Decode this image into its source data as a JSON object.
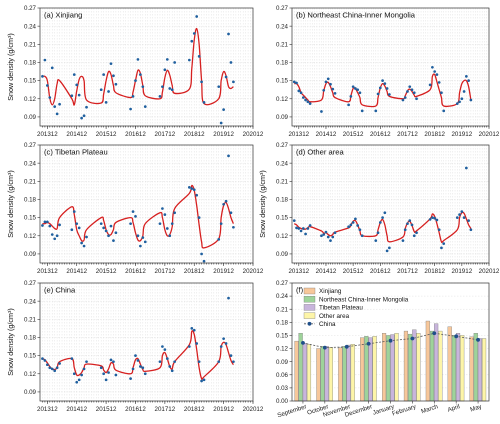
{
  "colors": {
    "points": "#1f5f9e",
    "curve": "#d62020",
    "xinjiang": "#f7c79a",
    "northeast": "#9ed39a",
    "tibetan": "#c8b5dc",
    "other": "#fdf5a8",
    "china_line": "#5a5a5a",
    "china_marker": "#1f4f8a"
  },
  "panels": [
    {
      "title": "(a) Xinjiang",
      "ylabel": "Snow density (g/cm³)",
      "yticks": [
        "0.09",
        "0.12",
        "0.15",
        "0.18",
        "0.21",
        "0.24",
        "0.27"
      ],
      "xticks": [
        "201312",
        "201412",
        "201512",
        "201612",
        "201712",
        "201812",
        "201912",
        "202012"
      ]
    },
    {
      "title": "(b) Northeast China-Inner Mongolia",
      "ylabel": "",
      "yticks": [
        "0.09",
        "0.12",
        "0.15",
        "0.18",
        "0.21",
        "0.24",
        "0.27"
      ],
      "xticks": [
        "201312",
        "201412",
        "201512",
        "201612",
        "201712",
        "201812",
        "201912",
        "202012"
      ]
    },
    {
      "title": "(c) Tibetan Plateau",
      "ylabel": "Snow density (g/cm³)",
      "yticks": [
        "0.09",
        "0.12",
        "0.15",
        "0.18",
        "0.21",
        "0.24",
        "0.27"
      ],
      "xticks": [
        "201312",
        "201412",
        "201512",
        "201612",
        "201712",
        "201812",
        "201912",
        "202012"
      ]
    },
    {
      "title": "(d) Other area",
      "ylabel": "Snow density (g/cm³)",
      "yticks": [
        "0.09",
        "0.12",
        "0.15",
        "0.18",
        "0.21",
        "0.24",
        "0.27"
      ],
      "xticks": [
        "201312",
        "201412",
        "201512",
        "201612",
        "201712",
        "201812",
        "201912",
        "202012"
      ]
    },
    {
      "title": "(e) China",
      "ylabel": "Snow density (g/cm³)",
      "yticks": [
        "0.09",
        "0.12",
        "0.15",
        "0.18",
        "0.21",
        "0.24",
        "0.27"
      ],
      "xticks": [
        "201312",
        "201412",
        "201512",
        "201612",
        "201712",
        "201812",
        "201912",
        "202012"
      ]
    },
    {
      "title": "(f)",
      "ylabel": "",
      "yticks": [
        "0.00",
        "0.03",
        "0.06",
        "0.09",
        "0.12",
        "0.15",
        "0.18",
        "0.21",
        "0.24",
        "0.27"
      ],
      "xticks": [
        "September",
        "October",
        "November",
        "December",
        "January",
        "February",
        "March",
        "April",
        "May"
      ]
    }
  ],
  "legend": [
    "Xinjiang",
    "Northeast China-Inner Mongolia",
    "Tibetan Plateau",
    "Other area",
    "China"
  ],
  "chart_data": [
    {
      "type": "scatter",
      "title": "(a) Xinjiang",
      "ylabel": "Snow density (g/cm³)",
      "ylim": [
        0.075,
        0.27
      ],
      "x": [
        "201310",
        "201311",
        "201312",
        "201401",
        "201402",
        "201403",
        "201404",
        "201405",
        "201410",
        "201411",
        "201412",
        "201501",
        "201502",
        "201503",
        "201504",
        "201510",
        "201511",
        "201512",
        "201601",
        "201602",
        "201603",
        "201604",
        "201610",
        "201611",
        "201612",
        "201701",
        "201702",
        "201703",
        "201704",
        "201710",
        "201711",
        "201712",
        "201801",
        "201802",
        "201803",
        "201804",
        "201810",
        "201811",
        "201812",
        "201901",
        "201902",
        "201903",
        "201904",
        "201910",
        "201911",
        "201912",
        "202001",
        "202002",
        "202003",
        "202004"
      ],
      "points": [
        0.157,
        0.184,
        0.142,
        0.122,
        0.171,
        0.107,
        0.095,
        0.111,
        0.125,
        0.16,
        0.143,
        0.126,
        0.088,
        0.092,
        0.106,
        0.135,
        0.16,
        0.114,
        0.132,
        0.178,
        0.158,
        0.144,
        0.103,
        0.124,
        0.15,
        0.185,
        0.16,
        0.14,
        0.107,
        0.124,
        0.14,
        0.168,
        0.185,
        0.137,
        0.135,
        0.18,
        0.184,
        0.215,
        0.228,
        0.256,
        0.19,
        0.148,
        0.114,
        0.14,
        0.08,
        0.102,
        0.156,
        0.227,
        0.18,
        0.148
      ],
      "fit": [
        0.157,
        0.157,
        0.15,
        0.121,
        0.11,
        0.12,
        0.145,
        0.15,
        0.12,
        0.11,
        0.133,
        0.152,
        0.157,
        0.15,
        0.118,
        0.113,
        0.128,
        0.15,
        0.165,
        0.16,
        0.142,
        0.13,
        0.122,
        0.131,
        0.15,
        0.167,
        0.162,
        0.142,
        0.125,
        0.12,
        0.131,
        0.155,
        0.167,
        0.159,
        0.142,
        0.129,
        0.136,
        0.17,
        0.217,
        0.236,
        0.21,
        0.15,
        0.112,
        0.12,
        0.15,
        0.165,
        0.158,
        0.14,
        0.137,
        0.14
      ]
    },
    {
      "type": "scatter",
      "title": "(b) Northeast China-Inner Mongolia",
      "ylim": [
        0.075,
        0.27
      ],
      "x": [
        "201310",
        "201311",
        "201312",
        "201401",
        "201402",
        "201403",
        "201404",
        "201405",
        "201410",
        "201411",
        "201412",
        "201501",
        "201502",
        "201503",
        "201504",
        "201510",
        "201511",
        "201512",
        "201601",
        "201602",
        "201603",
        "201604",
        "201610",
        "201611",
        "201612",
        "201701",
        "201702",
        "201703",
        "201704",
        "201710",
        "201711",
        "201712",
        "201801",
        "201802",
        "201803",
        "201804",
        "201810",
        "201811",
        "201812",
        "201901",
        "201902",
        "201903",
        "201904",
        "201910",
        "201911",
        "201912",
        "202001",
        "202002",
        "202003",
        "202004"
      ],
      "points": [
        0.148,
        0.146,
        0.133,
        0.13,
        0.122,
        0.118,
        0.115,
        0.112,
        0.099,
        0.134,
        0.148,
        0.153,
        0.144,
        0.136,
        0.129,
        0.11,
        0.124,
        0.14,
        0.137,
        0.135,
        0.13,
        0.1,
        0.1,
        0.128,
        0.138,
        0.15,
        0.145,
        0.137,
        0.127,
        0.118,
        0.122,
        0.132,
        0.14,
        0.135,
        0.13,
        0.12,
        0.143,
        0.172,
        0.165,
        0.16,
        0.147,
        0.13,
        0.1,
        0.112,
        0.115,
        0.12,
        0.132,
        0.157,
        0.15,
        0.118
      ],
      "fit": [
        0.145,
        0.145,
        0.14,
        0.13,
        0.126,
        0.122,
        0.118,
        0.115,
        0.118,
        0.133,
        0.145,
        0.147,
        0.14,
        0.13,
        0.122,
        0.115,
        0.125,
        0.137,
        0.137,
        0.13,
        0.122,
        0.11,
        0.108,
        0.122,
        0.138,
        0.145,
        0.141,
        0.132,
        0.124,
        0.12,
        0.125,
        0.133,
        0.136,
        0.132,
        0.126,
        0.124,
        0.135,
        0.157,
        0.16,
        0.148,
        0.135,
        0.122,
        0.108,
        0.112,
        0.13,
        0.145,
        0.15,
        0.15,
        0.14,
        0.118
      ]
    },
    {
      "type": "scatter",
      "title": "(c) Tibetan Plateau",
      "ylabel": "Snow density (g/cm³)",
      "ylim": [
        0.075,
        0.27
      ],
      "x": [
        "201310",
        "201311",
        "201312",
        "201401",
        "201402",
        "201403",
        "201404",
        "201405",
        "201410",
        "201411",
        "201412",
        "201501",
        "201502",
        "201503",
        "201504",
        "201510",
        "201511",
        "201512",
        "201601",
        "201602",
        "201603",
        "201604",
        "201610",
        "201611",
        "201612",
        "201701",
        "201702",
        "201703",
        "201704",
        "201710",
        "201711",
        "201712",
        "201801",
        "201802",
        "201803",
        "201804",
        "201810",
        "201811",
        "201812",
        "201901",
        "201902",
        "201903",
        "201904",
        "201910",
        "201911",
        "201912",
        "202001",
        "202002",
        "202003",
        "202004"
      ],
      "points": [
        0.137,
        0.143,
        0.143,
        0.136,
        0.122,
        0.115,
        0.12,
        0.138,
        0.13,
        0.16,
        0.14,
        0.133,
        0.108,
        0.103,
        0.118,
        0.14,
        0.133,
        0.128,
        0.12,
        0.136,
        0.112,
        0.125,
        0.14,
        0.16,
        0.152,
        0.12,
        0.103,
        0.117,
        0.11,
        0.14,
        0.165,
        0.155,
        0.132,
        0.12,
        0.14,
        0.158,
        0.2,
        0.198,
        0.196,
        0.187,
        0.15,
        0.09,
        0.078,
        0.114,
        0.14,
        0.172,
        0.177,
        0.252,
        0.158,
        0.134
      ],
      "fit": [
        0.14,
        0.14,
        0.142,
        0.14,
        0.136,
        0.132,
        0.132,
        0.15,
        0.168,
        0.155,
        0.13,
        0.12,
        0.112,
        0.113,
        0.13,
        0.15,
        0.145,
        0.13,
        0.122,
        0.122,
        0.13,
        0.142,
        0.15,
        0.142,
        0.125,
        0.113,
        0.112,
        0.12,
        0.14,
        0.158,
        0.15,
        0.13,
        0.12,
        0.122,
        0.135,
        0.165,
        0.19,
        0.203,
        0.195,
        0.17,
        0.138,
        0.11,
        0.1,
        0.115,
        0.15,
        0.17,
        0.175,
        0.165,
        0.15,
        0.14
      ]
    },
    {
      "type": "scatter",
      "title": "(d) Other area",
      "ylabel": "Snow density (g/cm³)",
      "ylim": [
        0.075,
        0.27
      ],
      "x": [
        "201310",
        "201311",
        "201312",
        "201401",
        "201402",
        "201403",
        "201404",
        "201405",
        "201410",
        "201411",
        "201412",
        "201501",
        "201502",
        "201503",
        "201504",
        "201510",
        "201511",
        "201512",
        "201601",
        "201602",
        "201603",
        "201604",
        "201610",
        "201611",
        "201612",
        "201701",
        "201702",
        "201703",
        "201704",
        "201710",
        "201711",
        "201712",
        "201801",
        "201802",
        "201803",
        "201804",
        "201810",
        "201811",
        "201812",
        "201901",
        "201902",
        "201903",
        "201904",
        "201910",
        "201911",
        "201912",
        "202001",
        "202002",
        "202003",
        "202004"
      ],
      "points": [
        0.145,
        0.133,
        0.132,
        0.128,
        0.132,
        0.123,
        0.132,
        0.137,
        0.12,
        0.122,
        0.126,
        0.118,
        0.112,
        0.118,
        0.125,
        0.135,
        0.138,
        0.142,
        0.148,
        0.137,
        0.13,
        0.12,
        0.112,
        0.125,
        0.142,
        0.15,
        0.158,
        0.095,
        0.1,
        0.112,
        0.13,
        0.14,
        0.145,
        0.138,
        0.12,
        0.125,
        0.147,
        0.15,
        0.149,
        0.146,
        0.13,
        0.1,
        0.107,
        0.15,
        0.155,
        0.16,
        0.15,
        0.232,
        0.145,
        0.13
      ],
      "fit": [
        0.14,
        0.138,
        0.134,
        0.132,
        0.131,
        0.131,
        0.133,
        0.135,
        0.128,
        0.124,
        0.125,
        0.122,
        0.12,
        0.122,
        0.126,
        0.133,
        0.138,
        0.144,
        0.145,
        0.138,
        0.128,
        0.12,
        0.12,
        0.13,
        0.142,
        0.147,
        0.138,
        0.12,
        0.11,
        0.118,
        0.132,
        0.141,
        0.144,
        0.137,
        0.127,
        0.128,
        0.148,
        0.156,
        0.152,
        0.14,
        0.125,
        0.11,
        0.112,
        0.13,
        0.15,
        0.158,
        0.157,
        0.148,
        0.138,
        0.132
      ]
    },
    {
      "type": "scatter",
      "title": "(e) China",
      "ylabel": "Snow density (g/cm³)",
      "ylim": [
        0.075,
        0.27
      ],
      "x": [
        "201310",
        "201311",
        "201312",
        "201401",
        "201402",
        "201403",
        "201404",
        "201405",
        "201410",
        "201411",
        "201412",
        "201501",
        "201502",
        "201503",
        "201504",
        "201510",
        "201511",
        "201512",
        "201601",
        "201602",
        "201603",
        "201604",
        "201610",
        "201611",
        "201612",
        "201701",
        "201702",
        "201703",
        "201704",
        "201710",
        "201711",
        "201712",
        "201801",
        "201802",
        "201803",
        "201804",
        "201810",
        "201811",
        "201812",
        "201901",
        "201902",
        "201903",
        "201904",
        "201910",
        "201911",
        "201912",
        "202001",
        "202002",
        "202003",
        "202004"
      ],
      "points": [
        0.145,
        0.142,
        0.135,
        0.13,
        0.128,
        0.125,
        0.13,
        0.137,
        0.145,
        0.12,
        0.106,
        0.11,
        0.118,
        0.128,
        0.14,
        0.13,
        0.12,
        0.11,
        0.122,
        0.143,
        0.14,
        0.118,
        0.112,
        0.128,
        0.15,
        0.142,
        0.132,
        0.13,
        0.12,
        0.14,
        0.165,
        0.16,
        0.145,
        0.132,
        0.125,
        0.14,
        0.165,
        0.195,
        0.192,
        0.17,
        0.14,
        0.108,
        0.11,
        0.14,
        0.165,
        0.178,
        0.17,
        0.245,
        0.15,
        0.14
      ],
      "fit": [
        0.145,
        0.143,
        0.138,
        0.132,
        0.128,
        0.127,
        0.13,
        0.14,
        0.145,
        0.13,
        0.118,
        0.118,
        0.122,
        0.13,
        0.136,
        0.133,
        0.126,
        0.122,
        0.128,
        0.138,
        0.136,
        0.126,
        0.12,
        0.13,
        0.143,
        0.145,
        0.136,
        0.127,
        0.124,
        0.13,
        0.15,
        0.155,
        0.145,
        0.132,
        0.128,
        0.14,
        0.168,
        0.19,
        0.185,
        0.16,
        0.13,
        0.112,
        0.115,
        0.14,
        0.165,
        0.172,
        0.168,
        0.155,
        0.142,
        0.135
      ]
    },
    {
      "type": "bar",
      "title": "(f)",
      "ylim": [
        0,
        0.27
      ],
      "categories": [
        "September",
        "October",
        "November",
        "December",
        "January",
        "February",
        "March",
        "April",
        "May"
      ],
      "series": [
        {
          "name": "Xinjiang",
          "values": [
            0.137,
            0.12,
            0.122,
            0.145,
            0.155,
            0.16,
            0.183,
            0.17,
            0.147
          ]
        },
        {
          "name": "Northeast China-Inner Mongolia",
          "values": [
            0.155,
            0.125,
            0.125,
            0.148,
            0.15,
            0.153,
            0.16,
            0.15,
            0.155
          ]
        },
        {
          "name": "Tibetan Plateau",
          "values": [
            0.132,
            0.125,
            0.128,
            0.145,
            0.152,
            0.163,
            0.177,
            0.155,
            0.143
          ]
        },
        {
          "name": "Other area",
          "values": [
            0.13,
            0.123,
            0.13,
            0.148,
            0.155,
            0.155,
            0.16,
            0.15,
            0.143
          ]
        }
      ],
      "line": {
        "name": "China",
        "values": [
          0.133,
          0.122,
          0.124,
          0.131,
          0.138,
          0.143,
          0.155,
          0.148,
          0.14
        ]
      }
    }
  ]
}
